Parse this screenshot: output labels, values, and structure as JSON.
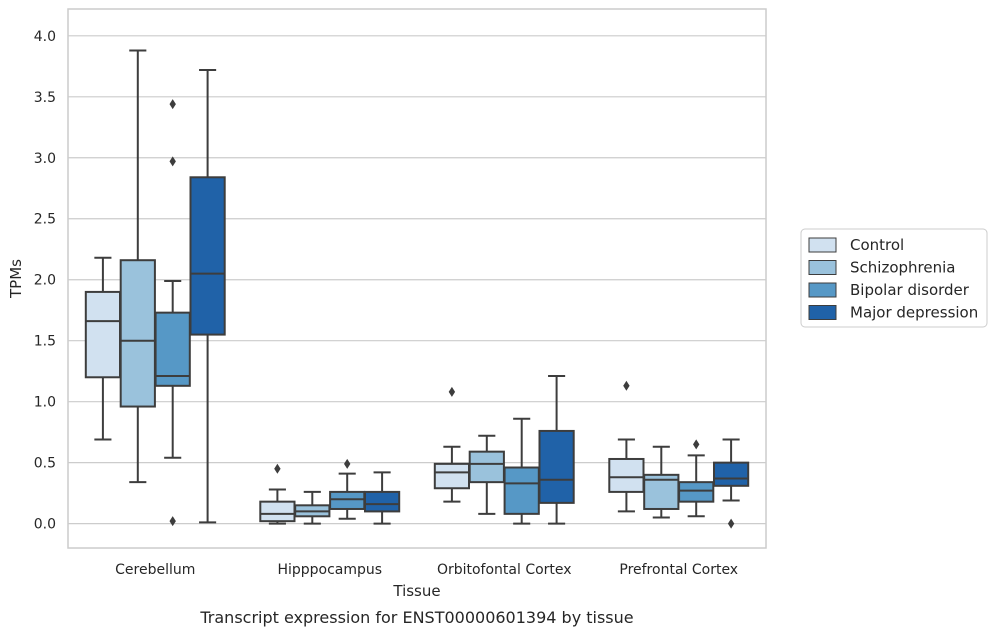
{
  "chart_data": {
    "type": "box",
    "caption": "Transcript expression for ENST00000601394 by tissue",
    "xlabel": "Tissue",
    "ylabel": "TPMs",
    "ylim": [
      -0.2,
      4.22
    ],
    "yticks": [
      "0.0",
      "0.5",
      "1.0",
      "1.5",
      "2.0",
      "2.5",
      "3.0",
      "3.5",
      "4.0"
    ],
    "grid": "horizontal",
    "legend_position": "right",
    "categories": [
      "Cerebellum",
      "Hipppocampus",
      "Orbitofontal Cortex",
      "Prefrontal Cortex"
    ],
    "series": [
      {
        "name": "Control",
        "color": "#d1e1f0",
        "boxes": [
          {
            "whislo": 0.69,
            "q1": 1.2,
            "med": 1.66,
            "q3": 1.9,
            "whishi": 2.18,
            "fliers": []
          },
          {
            "whislo": 0.0,
            "q1": 0.02,
            "med": 0.08,
            "q3": 0.18,
            "whishi": 0.28,
            "fliers": [
              0.45
            ]
          },
          {
            "whislo": 0.18,
            "q1": 0.29,
            "med": 0.42,
            "q3": 0.49,
            "whishi": 0.63,
            "fliers": [
              1.08
            ]
          },
          {
            "whislo": 0.1,
            "q1": 0.26,
            "med": 0.38,
            "q3": 0.53,
            "whishi": 0.69,
            "fliers": [
              1.13
            ]
          }
        ]
      },
      {
        "name": "Schizophrenia",
        "color": "#9ac2dc",
        "boxes": [
          {
            "whislo": 0.34,
            "q1": 0.96,
            "med": 1.5,
            "q3": 2.16,
            "whishi": 3.88,
            "fliers": []
          },
          {
            "whislo": 0.0,
            "q1": 0.06,
            "med": 0.1,
            "q3": 0.15,
            "whishi": 0.26,
            "fliers": []
          },
          {
            "whislo": 0.08,
            "q1": 0.34,
            "med": 0.49,
            "q3": 0.59,
            "whishi": 0.72,
            "fliers": []
          },
          {
            "whislo": 0.05,
            "q1": 0.12,
            "med": 0.36,
            "q3": 0.4,
            "whishi": 0.63,
            "fliers": []
          }
        ]
      },
      {
        "name": "Bipolar disorder",
        "color": "#5698c6",
        "boxes": [
          {
            "whislo": 0.54,
            "q1": 1.13,
            "med": 1.21,
            "q3": 1.73,
            "whishi": 1.99,
            "fliers": [
              0.02,
              2.97,
              3.44
            ]
          },
          {
            "whislo": 0.04,
            "q1": 0.12,
            "med": 0.2,
            "q3": 0.26,
            "whishi": 0.41,
            "fliers": [
              0.49
            ]
          },
          {
            "whislo": 0.0,
            "q1": 0.08,
            "med": 0.33,
            "q3": 0.46,
            "whishi": 0.86,
            "fliers": []
          },
          {
            "whislo": 0.06,
            "q1": 0.18,
            "med": 0.27,
            "q3": 0.34,
            "whishi": 0.56,
            "fliers": [
              0.65
            ]
          }
        ]
      },
      {
        "name": "Major depression",
        "color": "#2062a8",
        "boxes": [
          {
            "whislo": 0.01,
            "q1": 1.55,
            "med": 2.05,
            "q3": 2.84,
            "whishi": 3.72,
            "fliers": []
          },
          {
            "whislo": 0.0,
            "q1": 0.1,
            "med": 0.16,
            "q3": 0.26,
            "whishi": 0.42,
            "fliers": []
          },
          {
            "whislo": 0.0,
            "q1": 0.17,
            "med": 0.36,
            "q3": 0.76,
            "whishi": 1.21,
            "fliers": []
          },
          {
            "whislo": 0.19,
            "q1": 0.31,
            "med": 0.37,
            "q3": 0.5,
            "whishi": 0.69,
            "fliers": [
              0.0
            ]
          }
        ]
      }
    ]
  }
}
